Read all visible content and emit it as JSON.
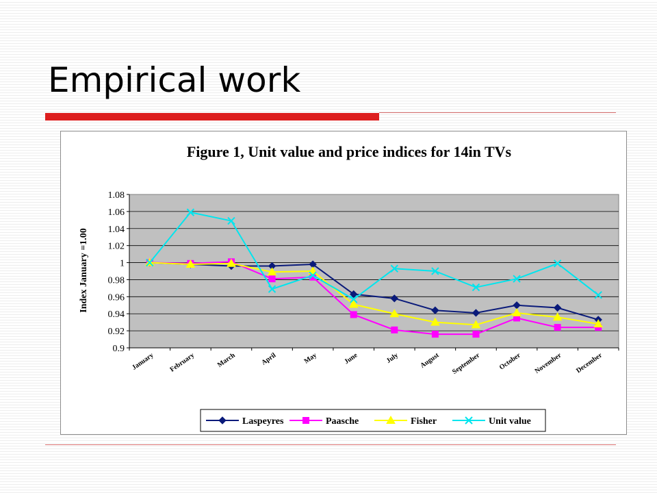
{
  "slide": {
    "title": "Empirical work"
  },
  "colors": {
    "accent": "#dd1f1f",
    "plot_area": "#c0c0c0"
  },
  "chart_data": {
    "type": "line",
    "title": "Figure 1, Unit value and price indices for 14in TVs",
    "xlabel": "",
    "ylabel": "Index January =1.00",
    "categories": [
      "January",
      "February",
      "March",
      "April",
      "May",
      "June",
      "July",
      "August",
      "September",
      "October",
      "November",
      "December"
    ],
    "yticks": [
      "0.9",
      "0.92",
      "0.94",
      "0.96",
      "0.98",
      "1",
      "1.02",
      "1.04",
      "1.06",
      "1.08"
    ],
    "ylim": [
      0.9,
      1.08
    ],
    "grid": true,
    "legend_position": "bottom",
    "series": [
      {
        "name": "Laspeyres",
        "color": "#0a1a7a",
        "marker": "diamond",
        "values": [
          1.0,
          0.998,
          0.996,
          0.996,
          0.998,
          0.963,
          0.958,
          0.944,
          0.941,
          0.95,
          0.947,
          0.933
        ]
      },
      {
        "name": "Paasche",
        "color": "#ff00ff",
        "marker": "square",
        "values": [
          1.0,
          0.999,
          1.001,
          0.981,
          0.983,
          0.939,
          0.921,
          0.916,
          0.916,
          0.935,
          0.924,
          0.924
        ]
      },
      {
        "name": "Fisher",
        "color": "#ffff00",
        "marker": "triangle",
        "values": [
          1.0,
          0.998,
          0.999,
          0.989,
          0.99,
          0.951,
          0.94,
          0.93,
          0.927,
          0.941,
          0.936,
          0.928
        ]
      },
      {
        "name": "Unit value",
        "color": "#00e5ee",
        "marker": "x",
        "values": [
          1.0,
          1.059,
          1.049,
          0.969,
          0.985,
          0.957,
          0.993,
          0.99,
          0.971,
          0.981,
          0.999,
          0.962
        ]
      }
    ]
  }
}
